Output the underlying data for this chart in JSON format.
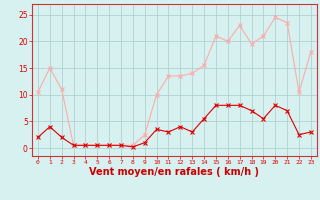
{
  "x": [
    0,
    1,
    2,
    3,
    4,
    5,
    6,
    7,
    8,
    9,
    10,
    11,
    12,
    13,
    14,
    15,
    16,
    17,
    18,
    19,
    20,
    21,
    22,
    23
  ],
  "avg_wind": [
    2,
    4,
    2,
    0.5,
    0.5,
    0.5,
    0.5,
    0.5,
    0.2,
    1,
    3.5,
    3,
    4,
    3,
    5.5,
    8,
    8,
    8,
    7,
    5.5,
    8,
    7,
    2.5,
    3
  ],
  "gusts": [
    10.5,
    15,
    11,
    0.5,
    0.5,
    0.5,
    0.5,
    0.5,
    0.5,
    2.5,
    10,
    13.5,
    13.5,
    14,
    15.5,
    21,
    20,
    23,
    19.5,
    21,
    24.5,
    23.5,
    10.5,
    18
  ],
  "avg_color": "#dd0000",
  "gust_color": "#ffaaaa",
  "bg_color": "#d7f0f0",
  "grid_color": "#aacccc",
  "xlabel": "Vent moyen/en rafales ( km/h )",
  "xlabel_color": "#cc0000",
  "xlabel_fontsize": 7,
  "ytick_labels": [
    "0",
    "5",
    "10",
    "15",
    "20",
    "25"
  ],
  "ytick_values": [
    0,
    5,
    10,
    15,
    20,
    25
  ],
  "ylim": [
    -1.5,
    27
  ],
  "xlim": [
    -0.5,
    23.5
  ],
  "spine_color": "#cc3333",
  "xtick_fontsize": 4.5,
  "ytick_fontsize": 5.5
}
